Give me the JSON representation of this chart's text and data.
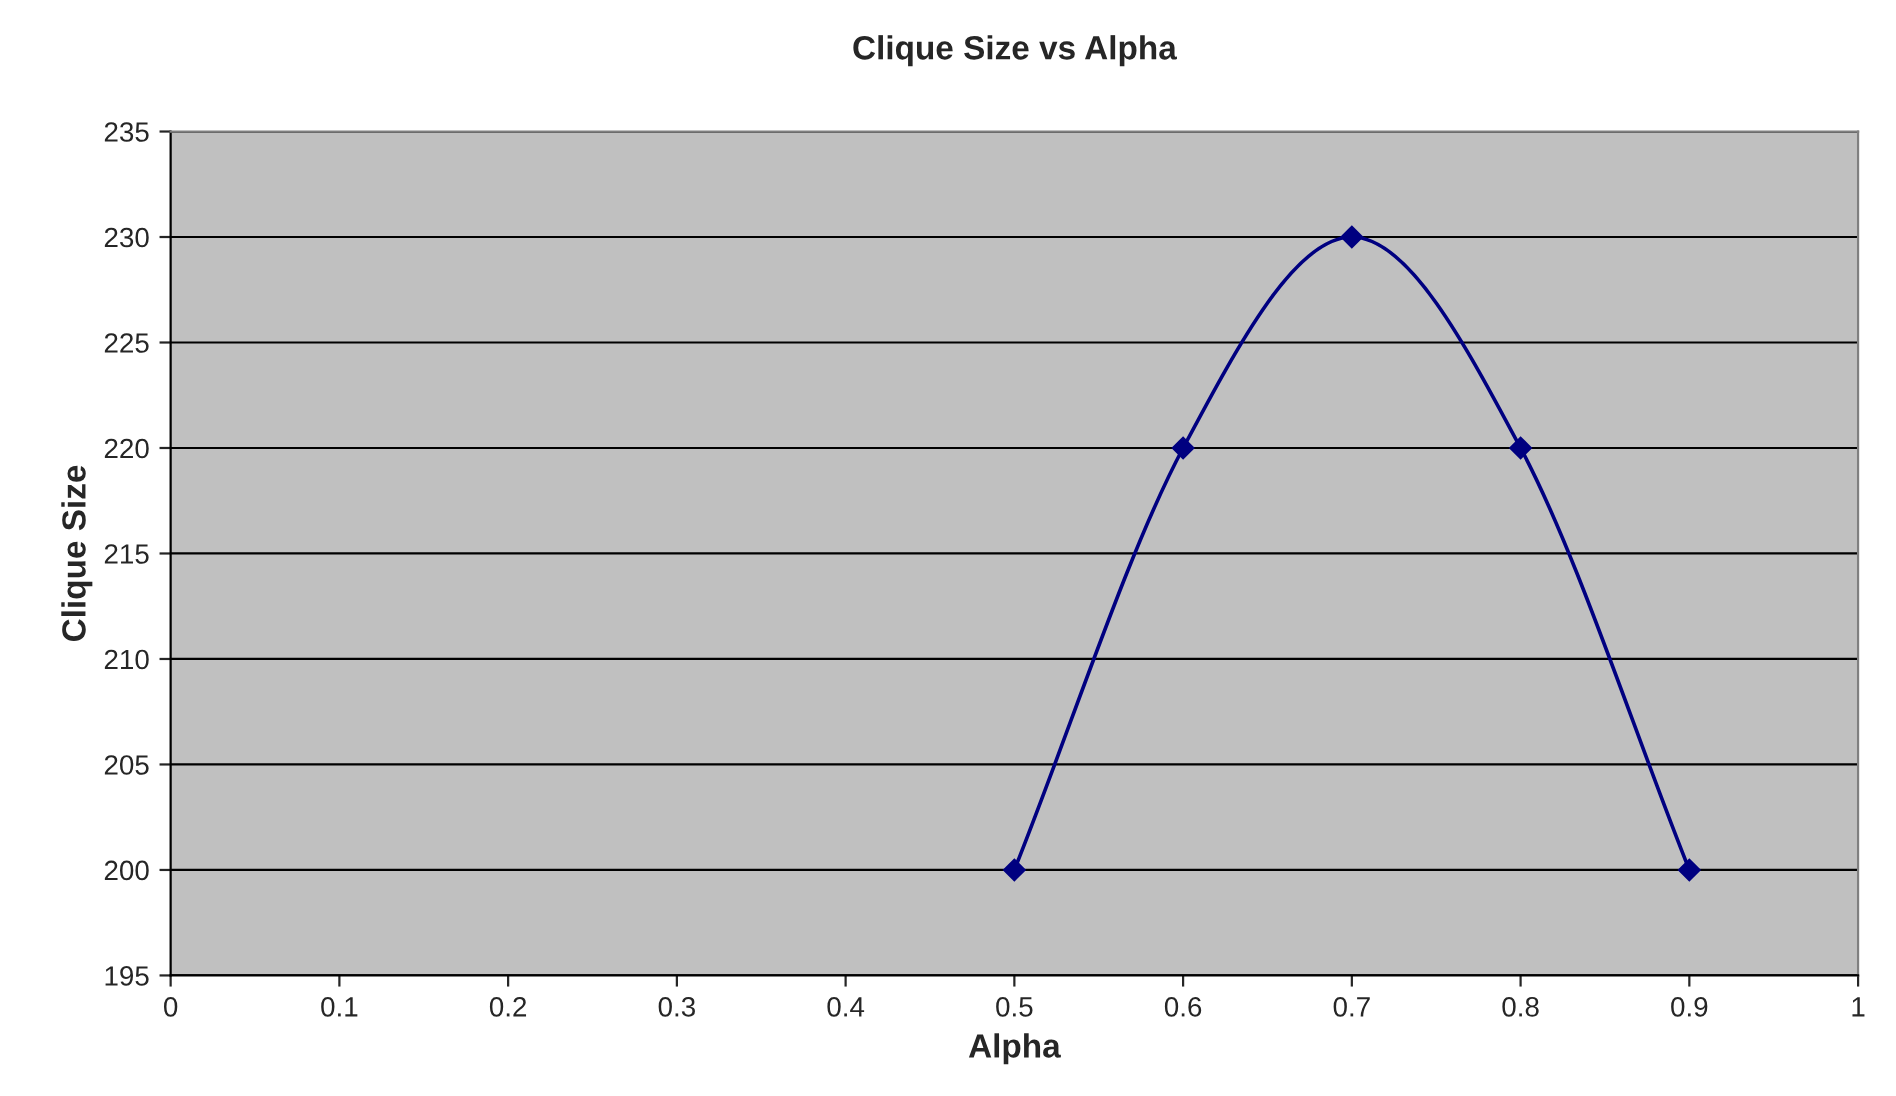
{
  "chart_data": {
    "type": "line",
    "title": "Clique Size vs Alpha",
    "xlabel": "Alpha",
    "ylabel": "Clique Size",
    "x": [
      0.5,
      0.6,
      0.7,
      0.8,
      0.9
    ],
    "series": [
      {
        "color": "#000080",
        "values": [
          200,
          220,
          230,
          220,
          200
        ]
      }
    ],
    "xlim": [
      0,
      1
    ],
    "xticks": [
      0,
      0.1,
      0.2,
      0.3,
      0.4,
      0.5,
      0.6,
      0.7,
      0.8,
      0.9,
      1
    ],
    "ylim": [
      195,
      235
    ],
    "yticks": [
      195,
      200,
      205,
      210,
      215,
      220,
      225,
      230,
      235
    ],
    "grid": "y",
    "legend": false,
    "marker": "diamond",
    "line_style": "solid"
  }
}
